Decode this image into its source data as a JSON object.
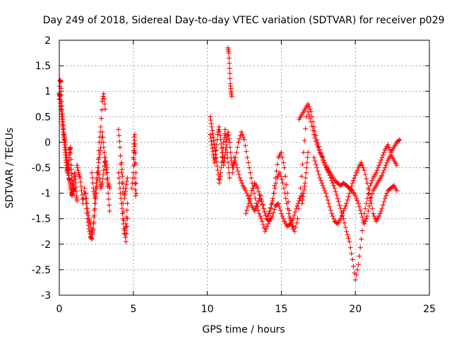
{
  "chart_data": {
    "type": "scatter",
    "title": "Day 249 of 2018, Sidereal Day-to-day VTEC variation (SDTVAR) for receiver p029",
    "xlabel": "GPS time / hours",
    "ylabel": "SDTVAR / TECUs",
    "xlim": [
      0,
      25
    ],
    "ylim": [
      -3,
      2
    ],
    "xticks": [
      0,
      5,
      10,
      15,
      20,
      25
    ],
    "xtick_labels": [
      "0",
      "5",
      "10",
      "15",
      "20",
      "25"
    ],
    "yticks": [
      2,
      1.5,
      1,
      0.5,
      0,
      -0.5,
      -1,
      -1.5,
      -2,
      -2.5,
      -3
    ],
    "ytick_labels": [
      "2",
      "1.5",
      "1",
      "0.5",
      "0",
      "-0.5",
      "-1",
      "-1.5",
      "-2",
      "-2.5",
      "-3"
    ],
    "grid": true,
    "marker": "+",
    "color": "#ff0000",
    "series": [
      {
        "name": "SDTVAR",
        "segments": [
          {
            "x": [
              0.0,
              0.05,
              0.1,
              0.15,
              0.2,
              0.25,
              0.3,
              0.35,
              0.4,
              0.45,
              0.5,
              0.55,
              0.6,
              0.65,
              0.7,
              0.75,
              0.8,
              0.85,
              0.9,
              0.95,
              1.0,
              1.05,
              1.1,
              1.15,
              1.2
            ],
            "y": [
              0.85,
              1.22,
              1.18,
              0.8,
              0.55,
              0.4,
              0.2,
              0.1,
              0.0,
              -0.15,
              -0.3,
              -0.45,
              -0.55,
              -0.7,
              -0.75,
              -0.85,
              -0.95,
              -1.05,
              -1.0,
              -0.9,
              -0.7,
              -0.6,
              -0.8,
              -1.05,
              -1.15
            ]
          },
          {
            "x": [
              0.0,
              0.05,
              0.1,
              0.15,
              0.2,
              0.25,
              0.3,
              0.35,
              0.4,
              0.45,
              0.5,
              0.55,
              0.6,
              0.65,
              0.7,
              0.75,
              0.8,
              0.85,
              0.9,
              0.95,
              1.0
            ],
            "y": [
              0.95,
              0.9,
              0.7,
              0.55,
              0.4,
              0.25,
              0.1,
              -0.05,
              -0.2,
              -0.35,
              -0.5,
              -0.6,
              -0.5,
              -0.3,
              -0.15,
              -0.1,
              -0.45,
              -0.7,
              -0.85,
              -0.95,
              -0.9
            ]
          },
          {
            "x": [
              1.2,
              1.3,
              1.4,
              1.5,
              1.6,
              1.7,
              1.8,
              1.9,
              2.0,
              2.1,
              2.2,
              2.3,
              2.4,
              2.5,
              2.6,
              2.7,
              2.8,
              2.9,
              3.0,
              3.1
            ],
            "y": [
              -0.45,
              -0.6,
              -0.7,
              -0.95,
              -1.2,
              -0.9,
              -1.2,
              -1.5,
              -1.7,
              -1.85,
              -1.9,
              -1.6,
              -1.2,
              -0.8,
              -0.5,
              0.0,
              0.3,
              0.8,
              0.95,
              0.65
            ]
          },
          {
            "x": [
              1.8,
              1.9,
              2.0,
              2.1,
              2.2,
              2.3,
              2.4,
              2.5,
              2.6,
              2.7,
              2.8,
              2.9,
              3.0,
              3.1,
              3.2,
              3.3,
              3.4
            ],
            "y": [
              -1.0,
              -1.3,
              -1.5,
              -1.6,
              -1.8,
              -1.7,
              -1.3,
              -1.0,
              -0.6,
              -0.3,
              -0.1,
              0.2,
              -0.1,
              -0.4,
              -0.6,
              -1.0,
              -1.35
            ]
          },
          {
            "x": [
              2.2,
              2.3,
              2.4,
              2.5,
              2.6,
              2.7,
              2.8,
              2.9,
              3.0,
              3.1,
              3.2,
              3.3,
              3.4
            ],
            "y": [
              -0.6,
              -0.9,
              -1.1,
              -0.8,
              -0.5,
              -0.7,
              -0.9,
              -0.8,
              -0.55,
              -0.3,
              -0.5,
              -0.8,
              -0.9
            ]
          },
          {
            "x": [
              4.0,
              4.1,
              4.2,
              4.3,
              4.4,
              4.5,
              4.6
            ],
            "y": [
              0.25,
              -0.1,
              -0.6,
              -1.2,
              -1.7,
              -1.95,
              -1.5
            ]
          },
          {
            "x": [
              4.0,
              4.1,
              4.2,
              4.3,
              4.4,
              4.5,
              4.6
            ],
            "y": [
              -0.6,
              -0.9,
              -1.2,
              -1.5,
              -1.8,
              -1.6,
              -1.2
            ]
          },
          {
            "x": [
              4.2,
              4.3,
              4.4,
              4.5,
              4.6
            ],
            "y": [
              -0.4,
              -0.8,
              -1.1,
              -0.9,
              -0.7
            ]
          },
          {
            "x": [
              4.9,
              5.0,
              5.05,
              5.1,
              5.15,
              5.2
            ],
            "y": [
              -0.9,
              -0.6,
              -0.2,
              0.15,
              -0.4,
              -1.0
            ]
          },
          {
            "x": [
              5.0,
              5.05,
              5.1,
              5.15
            ],
            "y": [
              -0.3,
              0.1,
              -0.7,
              -1.05
            ]
          },
          {
            "x": [
              10.2,
              10.3,
              10.4,
              10.5,
              10.6,
              10.7,
              10.8,
              10.9,
              11.0,
              11.1,
              11.2,
              11.3,
              11.4,
              11.5
            ],
            "y": [
              0.5,
              0.3,
              0.1,
              -0.1,
              -0.3,
              -0.55,
              -0.8,
              -0.6,
              -0.3,
              0.0,
              0.25,
              -0.1,
              -0.4,
              -0.7
            ]
          },
          {
            "x": [
              10.2,
              10.3,
              10.4,
              10.5,
              10.6,
              10.7,
              10.8,
              10.9,
              11.0,
              11.1,
              11.2,
              11.3,
              11.4,
              11.5,
              11.6,
              11.7,
              11.8
            ],
            "y": [
              0.15,
              -0.05,
              -0.25,
              -0.4,
              -0.15,
              0.15,
              0.3,
              0.05,
              -0.2,
              -0.45,
              -0.25,
              0.05,
              0.2,
              0.0,
              -0.3,
              -0.5,
              -0.4
            ]
          },
          {
            "x": [
              11.4,
              11.45,
              11.5,
              11.55,
              11.6,
              11.65
            ],
            "y": [
              1.85,
              1.75,
              1.45,
              1.15,
              1.0,
              0.9
            ]
          },
          {
            "x": [
              11.7,
              11.9,
              12.1,
              12.3,
              12.5,
              12.7,
              12.9,
              13.1,
              13.3,
              13.5,
              13.7,
              13.9,
              14.1,
              14.3,
              14.5,
              14.7,
              14.9,
              15.1,
              15.3,
              15.5,
              15.7,
              15.9,
              16.1,
              16.3,
              16.5,
              16.7
            ],
            "y": [
              -0.6,
              -0.3,
              0.0,
              0.2,
              0.05,
              -0.3,
              -0.6,
              -0.9,
              -1.2,
              -1.4,
              -1.55,
              -1.75,
              -1.6,
              -1.3,
              -1.0,
              -0.7,
              -0.6,
              -0.8,
              -1.1,
              -1.4,
              -1.6,
              -1.75,
              -1.5,
              -0.9,
              -0.2,
              0.5
            ]
          },
          {
            "x": [
              11.8,
              12.0,
              12.2,
              12.4,
              12.6,
              12.8,
              13.0,
              13.2,
              13.4,
              13.6,
              13.8,
              14.0,
              14.2,
              14.4,
              14.6,
              14.8,
              15.0,
              15.2,
              15.4,
              15.6,
              15.8
            ],
            "y": [
              -0.3,
              -0.5,
              -0.7,
              -0.85,
              -0.95,
              -1.1,
              -1.25,
              -1.35,
              -1.2,
              -1.05,
              -1.3,
              -1.5,
              -1.35,
              -1.15,
              -0.7,
              -0.3,
              -0.2,
              -0.5,
              -1.0,
              -1.5,
              -1.7
            ]
          },
          {
            "x": [
              12.6,
              12.8,
              13.0,
              13.2,
              13.4,
              13.6,
              13.8,
              14.0,
              14.2,
              14.4,
              14.6,
              14.8,
              15.0,
              15.2,
              15.4,
              15.6,
              15.8,
              16.0,
              16.2,
              16.4
            ],
            "y": [
              -1.4,
              -1.2,
              -0.95,
              -0.8,
              -0.9,
              -1.1,
              -1.3,
              -1.5,
              -1.55,
              -1.45,
              -1.25,
              -1.2,
              -1.4,
              -1.55,
              -1.65,
              -1.6,
              -1.5,
              -1.3,
              -1.15,
              -1.0
            ]
          },
          {
            "x": [
              16.2,
              16.4,
              16.6,
              16.8,
              17.0,
              17.2,
              17.4,
              17.6,
              17.8,
              18.0,
              18.2,
              18.4,
              18.6,
              18.8,
              19.0,
              19.2,
              19.4,
              19.6,
              19.8,
              20.0,
              20.2,
              20.4,
              20.6,
              20.8,
              21.0,
              21.2,
              21.4,
              21.6,
              21.8,
              22.0,
              22.2,
              22.4,
              22.6,
              22.8,
              23.0
            ],
            "y": [
              0.45,
              0.55,
              0.65,
              0.75,
              0.6,
              0.3,
              0.05,
              -0.15,
              -0.35,
              -0.5,
              -0.6,
              -0.75,
              -0.9,
              -1.1,
              -1.3,
              -1.5,
              -1.75,
              -1.95,
              -2.3,
              -2.7,
              -2.4,
              -1.9,
              -1.4,
              -1.1,
              -0.85,
              -0.7,
              -0.6,
              -0.45,
              -0.3,
              -0.15,
              -0.05,
              -0.2,
              -0.1,
              0.0,
              0.05
            ]
          },
          {
            "x": [
              16.8,
              17.0,
              17.2,
              17.4,
              17.6,
              17.8,
              18.0,
              18.2,
              18.4,
              18.6,
              18.8,
              19.0,
              19.2,
              19.4,
              19.6,
              19.8,
              20.0,
              20.2,
              20.4,
              20.6,
              20.8,
              21.0,
              21.2,
              21.4,
              21.6,
              21.8,
              22.0,
              22.2,
              22.4,
              22.6,
              22.8
            ],
            "y": [
              0.6,
              0.4,
              0.15,
              -0.05,
              -0.2,
              -0.3,
              -0.45,
              -0.55,
              -0.65,
              -0.75,
              -0.8,
              -0.85,
              -0.8,
              -0.85,
              -0.9,
              -0.95,
              -1.05,
              -1.2,
              -1.4,
              -1.6,
              -1.45,
              -1.15,
              -0.95,
              -0.85,
              -0.75,
              -0.65,
              -0.5,
              -0.35,
              -0.25,
              -0.35,
              -0.45
            ]
          },
          {
            "x": [
              17.2,
              17.4,
              17.6,
              17.8,
              18.0,
              18.2,
              18.4,
              18.6,
              18.8,
              19.0,
              19.2,
              19.4,
              19.6,
              19.8,
              20.0,
              20.2,
              20.4,
              20.6,
              20.8,
              21.0,
              21.2,
              21.4,
              21.6,
              21.8,
              22.0,
              22.2,
              22.4,
              22.6,
              22.8
            ],
            "y": [
              -0.3,
              -0.5,
              -0.7,
              -0.85,
              -1.0,
              -1.2,
              -1.4,
              -1.55,
              -1.6,
              -1.5,
              -1.35,
              -1.2,
              -1.0,
              -0.8,
              -0.65,
              -0.5,
              -0.4,
              -0.55,
              -0.8,
              -1.1,
              -1.4,
              -1.55,
              -1.45,
              -1.3,
              -1.1,
              -0.95,
              -0.9,
              -0.85,
              -0.95
            ]
          },
          {
            "x": [
              16.4,
              16.5,
              16.6,
              16.7,
              16.8
            ],
            "y": [
              -1.2,
              -1.0,
              -0.8,
              -0.5,
              -0.2
            ]
          }
        ]
      }
    ]
  }
}
